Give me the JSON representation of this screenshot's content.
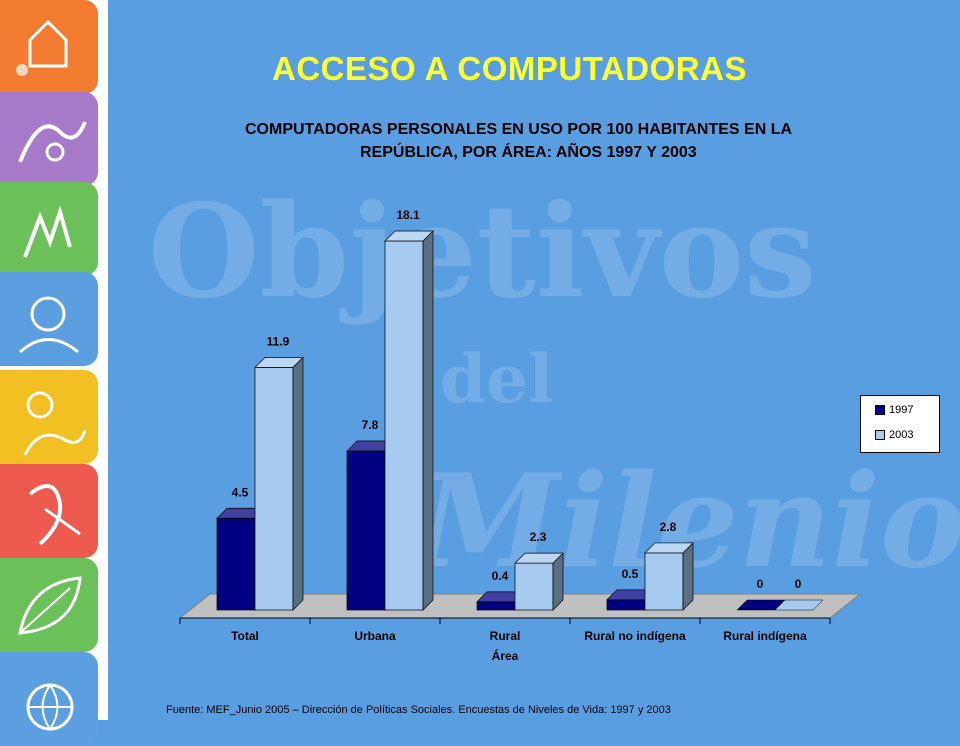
{
  "slide_title": "ACCESO A COMPUTADORAS",
  "chart_data": {
    "type": "bar",
    "title_line1": "COMPUTADORAS PERSONALES EN USO POR 100 HABITANTES EN LA",
    "title_line2": "REPÚBLICA, POR ÁREA: AÑOS 1997 Y 2003",
    "xlabel": "Área",
    "categories": [
      "Total",
      "Urbana",
      "Rural",
      "Rural no indígena",
      "Rural indígena"
    ],
    "series": [
      {
        "name": "1997",
        "values": [
          4.5,
          7.8,
          0.4,
          0.5,
          0
        ],
        "labels": [
          "4.5",
          "7.8",
          "0.4",
          "0.5",
          "0"
        ],
        "color": "#000080"
      },
      {
        "name": "2003",
        "values": [
          11.9,
          18.1,
          2.3,
          2.8,
          0
        ],
        "labels": [
          "11.9",
          "18.1",
          "2.3",
          "2.8",
          "0"
        ],
        "color": "#a6caf0"
      }
    ],
    "ylim": [
      0,
      18.1
    ],
    "legend_position": "right",
    "grid": false
  },
  "watermark": {
    "line1": "Objetivos",
    "line2": "del",
    "line3": "Milenio"
  },
  "source": "Fuente: MEF_Junio 2005 – Dirección de Políticas Sociales. Encuestas de Niveles de Vida: 1997 y 2003",
  "colors": {
    "background": "#5a9ee2",
    "title": "#ffff33",
    "series_1997": "#000080",
    "series_2003": "#a6caf0"
  },
  "side_tiles": [
    {
      "color": "#f47c30",
      "icon": "house-icon"
    },
    {
      "color": "#a67ac8",
      "icon": "hands-icon"
    },
    {
      "color": "#6cc05a",
      "icon": "hand-icon"
    },
    {
      "color": "#5b9fe0",
      "icon": "baby-icon"
    },
    {
      "color": "#f2c022",
      "icon": "mother-icon"
    },
    {
      "color": "#ee5a4e",
      "icon": "ribbon-icon"
    },
    {
      "color": "#6cc05a",
      "icon": "leaf-icon"
    },
    {
      "color": "#5b9fe0",
      "icon": "globe-icon"
    }
  ]
}
